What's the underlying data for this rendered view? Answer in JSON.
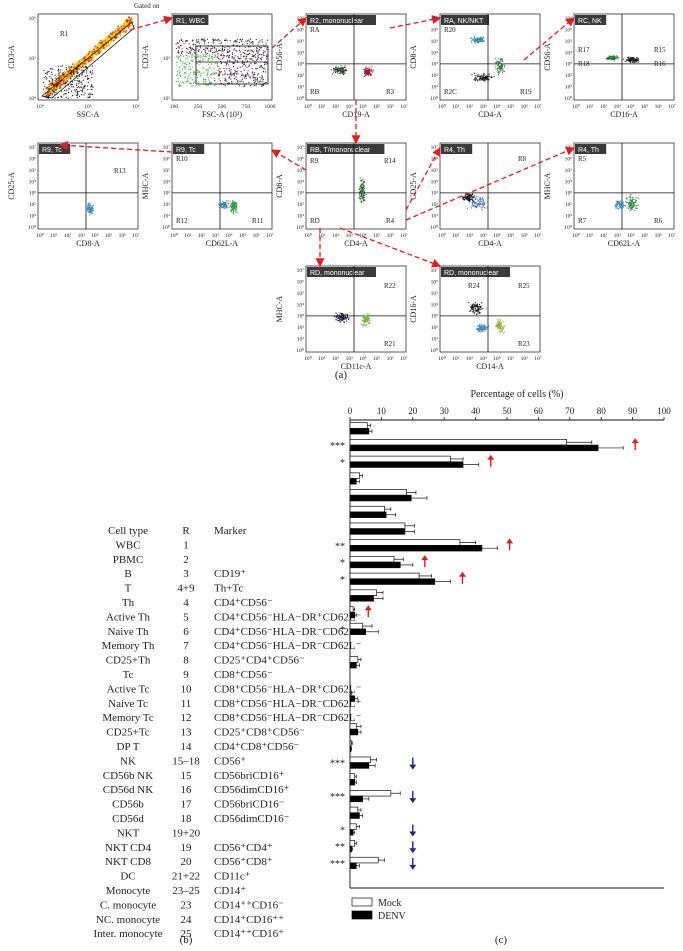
{
  "panel_a": {
    "label": "(a)",
    "gated_on": "Gated on",
    "panels": [
      {
        "tag": "",
        "xlabel": "SSC-A",
        "ylabel": "CD3-A",
        "xticks": [
          "10⁴",
          "10⁵",
          "10⁶"
        ],
        "yticks": [
          "10⁴",
          "10⁵",
          "10⁶"
        ],
        "regions": [
          "R1"
        ]
      },
      {
        "tag": "R1, WBC",
        "xlabel": "FSC-A (10³)",
        "ylabel": "CD3-A",
        "xticks": [
          "100",
          "250",
          "500",
          "750",
          "1000"
        ],
        "yticks": [
          "10²",
          "10³",
          "10⁴"
        ],
        "regions": [
          "R2"
        ]
      },
      {
        "tag": "R2, mononuclear",
        "xlabel": "CD19-A",
        "ylabel": "CD56-A",
        "regions": [
          "RA",
          "RB",
          "R3"
        ]
      },
      {
        "tag": "RA, NK/NKT",
        "xlabel": "CD4-A",
        "ylabel": "CD8-A",
        "regions": [
          "R20",
          "R2C",
          "R19"
        ]
      },
      {
        "tag": "RC, NK",
        "xlabel": "CD16-A",
        "ylabel": "CD56-A",
        "regions": [
          "R17",
          "R15",
          "R18",
          "R16"
        ]
      },
      {
        "tag": "R9, Tc",
        "xlabel": "CD8-A",
        "ylabel": "CD25-A",
        "regions": [
          "R13"
        ]
      },
      {
        "tag": "R9, Tc",
        "xlabel": "CD62L-A",
        "ylabel": "MHC-A",
        "regions": [
          "R10",
          "R12",
          "R11"
        ]
      },
      {
        "tag": "RB, T/mononuclear",
        "xlabel": "CD4-A",
        "ylabel": "CD8-A",
        "regions": [
          "R9",
          "R14",
          "RD",
          "R4"
        ]
      },
      {
        "tag": "R4, Th",
        "xlabel": "CD4-A",
        "ylabel": "CD25-A",
        "regions": [
          "R8"
        ]
      },
      {
        "tag": "R4, Th",
        "xlabel": "CD62L-A",
        "ylabel": "MHC-A",
        "regions": [
          "R5",
          "R7",
          "R6"
        ]
      },
      {
        "tag": "RD, mononuclear",
        "xlabel": "CD11c-A",
        "ylabel": "MHC-A",
        "regions": [
          "R22",
          "R21"
        ]
      },
      {
        "tag": "RD, mononuclear",
        "xlabel": "CD14-A",
        "ylabel": "CD16-A",
        "regions": [
          "R24",
          "R25",
          "R23"
        ]
      }
    ],
    "log_xticks": [
      "10⁰",
      "10¹",
      "10²",
      "10³",
      "10⁴",
      "10⁵",
      "10⁶",
      "10⁷"
    ],
    "log_yticks": [
      "10⁰",
      "10¹",
      "10²",
      "10³",
      "10⁴",
      "10⁵",
      "10⁶",
      "10⁷"
    ]
  },
  "panel_b": {
    "label": "(b)",
    "headers": {
      "cell_type": "Cell type",
      "r": "R",
      "marker": "Marker"
    },
    "rows": [
      {
        "cell_type": "WBC",
        "r": "1",
        "marker": ""
      },
      {
        "cell_type": "PBMC",
        "r": "2",
        "marker": ""
      },
      {
        "cell_type": "B",
        "r": "3",
        "marker": "CD19⁺"
      },
      {
        "cell_type": "T",
        "r": "4+9",
        "marker": "Th+Tc"
      },
      {
        "cell_type": "Th",
        "r": "4",
        "marker": "CD4⁺CD56⁻"
      },
      {
        "cell_type": "Active Th",
        "r": "5",
        "marker": "CD4⁺CD56⁻HLA−DR⁺CD62L⁻"
      },
      {
        "cell_type": "Naive Th",
        "r": "6",
        "marker": "CD4⁺CD56⁻HLA−DR⁻CD62L⁺"
      },
      {
        "cell_type": "Memory Th",
        "r": "7",
        "marker": "CD4⁺CD56⁻HLA−DR⁻CD62L⁻"
      },
      {
        "cell_type": "CD25+Th",
        "r": "8",
        "marker": "CD25⁺CD4⁺CD56⁻"
      },
      {
        "cell_type": "Tc",
        "r": "9",
        "marker": "CD8⁺CD56⁻"
      },
      {
        "cell_type": "Active Tc",
        "r": "10",
        "marker": "CD8⁺CD56⁻HLA−DR⁺CD62L⁻"
      },
      {
        "cell_type": "Naive Tc",
        "r": "11",
        "marker": "CD8⁺CD56⁻HLA−DR⁻CD62L⁺"
      },
      {
        "cell_type": "Memory Tc",
        "r": "12",
        "marker": "CD8⁺CD56⁻HLA−DR⁻CD62L⁻"
      },
      {
        "cell_type": "CD25+Tc",
        "r": "13",
        "marker": "CD25⁺CD8⁺CD56⁻"
      },
      {
        "cell_type": "DP T",
        "r": "14",
        "marker": "CD4⁺CD8⁺CD56⁻"
      },
      {
        "cell_type": "NK",
        "r": "15–18",
        "marker": "CD56⁺"
      },
      {
        "cell_type": "CD56b NK",
        "r": "15",
        "marker": "CD56briCD16⁺"
      },
      {
        "cell_type": "CD56d NK",
        "r": "16",
        "marker": "CD56dimCD16⁺"
      },
      {
        "cell_type": "CD56b",
        "r": "17",
        "marker": "CD56briCD16⁻"
      },
      {
        "cell_type": "CD56d",
        "r": "18",
        "marker": "CD56dimCD16⁻"
      },
      {
        "cell_type": "NKT",
        "r": "19+20",
        "marker": ""
      },
      {
        "cell_type": "NKT CD4",
        "r": "19",
        "marker": "CD56⁺CD4⁺"
      },
      {
        "cell_type": "NKT CD8",
        "r": "20",
        "marker": "CD56⁺CD8⁺"
      },
      {
        "cell_type": "DC",
        "r": "21+22",
        "marker": "CD11c⁺"
      },
      {
        "cell_type": "Monocyte",
        "r": "23–25",
        "marker": "CD14⁺"
      },
      {
        "cell_type": "C. monocyte",
        "r": "23",
        "marker": "CD14⁺⁺CD16⁻"
      },
      {
        "cell_type": "NC. monocyte",
        "r": "24",
        "marker": "CD14⁺CD16⁺⁺"
      },
      {
        "cell_type": "Inter. monocyte",
        "r": "25",
        "marker": "CD14⁺⁺CD16⁺"
      }
    ]
  },
  "chart_data": {
    "type": "bar",
    "orientation": "horizontal",
    "title": "Percentage of cells (%)",
    "xlabel": "Percentage of cells (%)",
    "xlim": [
      0,
      100
    ],
    "xticks": [
      "0",
      "10",
      "20",
      "30",
      "40",
      "50",
      "60",
      "70",
      "80",
      "90",
      "100"
    ],
    "categories": [
      "WBC",
      "PBMC",
      "B",
      "T",
      "Th",
      "Active Th",
      "Naive Th",
      "Memory Th",
      "CD25+Th",
      "Tc",
      "Active Tc",
      "Naive Tc",
      "Memory Tc",
      "CD25+Tc",
      "DP T",
      "NK",
      "CD56b NK",
      "CD56d NK",
      "CD56b",
      "CD56d",
      "NKT",
      "NKT CD4",
      "NKT CD8",
      "DC",
      "Monocyte",
      "C. monocyte",
      "NC. monocyte",
      "Inter. monocyte"
    ],
    "series": [
      {
        "name": "Mock",
        "color": "#ffffff",
        "values": [
          5.5,
          69,
          32,
          3,
          18,
          11,
          17.5,
          35,
          14,
          22,
          8.5,
          1,
          4,
          0,
          2.5,
          0,
          0.3,
          0,
          2,
          0.4,
          6.5,
          1.5,
          13,
          2.5,
          2,
          1.5,
          9,
          0
        ],
        "errors": [
          1,
          8,
          4,
          1,
          3,
          2,
          3,
          5,
          3,
          4,
          2,
          0.5,
          3,
          0,
          1,
          0,
          0.3,
          0,
          1.5,
          0.3,
          2,
          0.5,
          3,
          1,
          1,
          0.5,
          2,
          0
        ]
      },
      {
        "name": "DENV",
        "color": "#000000",
        "values": [
          6,
          79,
          36,
          2,
          19.5,
          11.5,
          17.5,
          42,
          16,
          27,
          7.5,
          1.5,
          5,
          0,
          2,
          0,
          1.5,
          0,
          2.5,
          0.3,
          6,
          1.5,
          4,
          3,
          1,
          0.5,
          2,
          0
        ],
        "errors": [
          1,
          8,
          5,
          1,
          5,
          3,
          3,
          5,
          4,
          5,
          3,
          0.5,
          4,
          0,
          1,
          0,
          0.8,
          0,
          1,
          0.2,
          2,
          0.5,
          2,
          1,
          0.5,
          0.3,
          1,
          0
        ]
      }
    ],
    "significance": [
      {
        "category": "PBMC",
        "mark": "***",
        "direction": "up"
      },
      {
        "category": "B",
        "mark": "*",
        "direction": "up"
      },
      {
        "category": "Memory Th",
        "mark": "**",
        "direction": "up"
      },
      {
        "category": "CD25+Th",
        "mark": "*",
        "direction": "up"
      },
      {
        "category": "Tc",
        "mark": "*",
        "direction": "up"
      },
      {
        "category": "Naive Tc",
        "mark": "",
        "direction": "up"
      },
      {
        "category": "Memory Tc",
        "mark": "*",
        "direction": ""
      },
      {
        "category": "NKT",
        "mark": "***",
        "direction": "down"
      },
      {
        "category": "NKT CD8",
        "mark": "***",
        "direction": "down"
      },
      {
        "category": "Monocyte",
        "mark": "*",
        "direction": "down"
      },
      {
        "category": "C. monocyte",
        "mark": "**",
        "direction": "down"
      },
      {
        "category": "NC. monocyte",
        "mark": "***",
        "direction": "down"
      }
    ],
    "legend": {
      "position": "bottom-left",
      "entries": [
        "Mock",
        "DENV"
      ]
    },
    "colors": {
      "up_arrow": "#e02020",
      "down_arrow": "#1f2a7a",
      "gate_arrow": "#e02020"
    },
    "panel_label": "(c)"
  }
}
